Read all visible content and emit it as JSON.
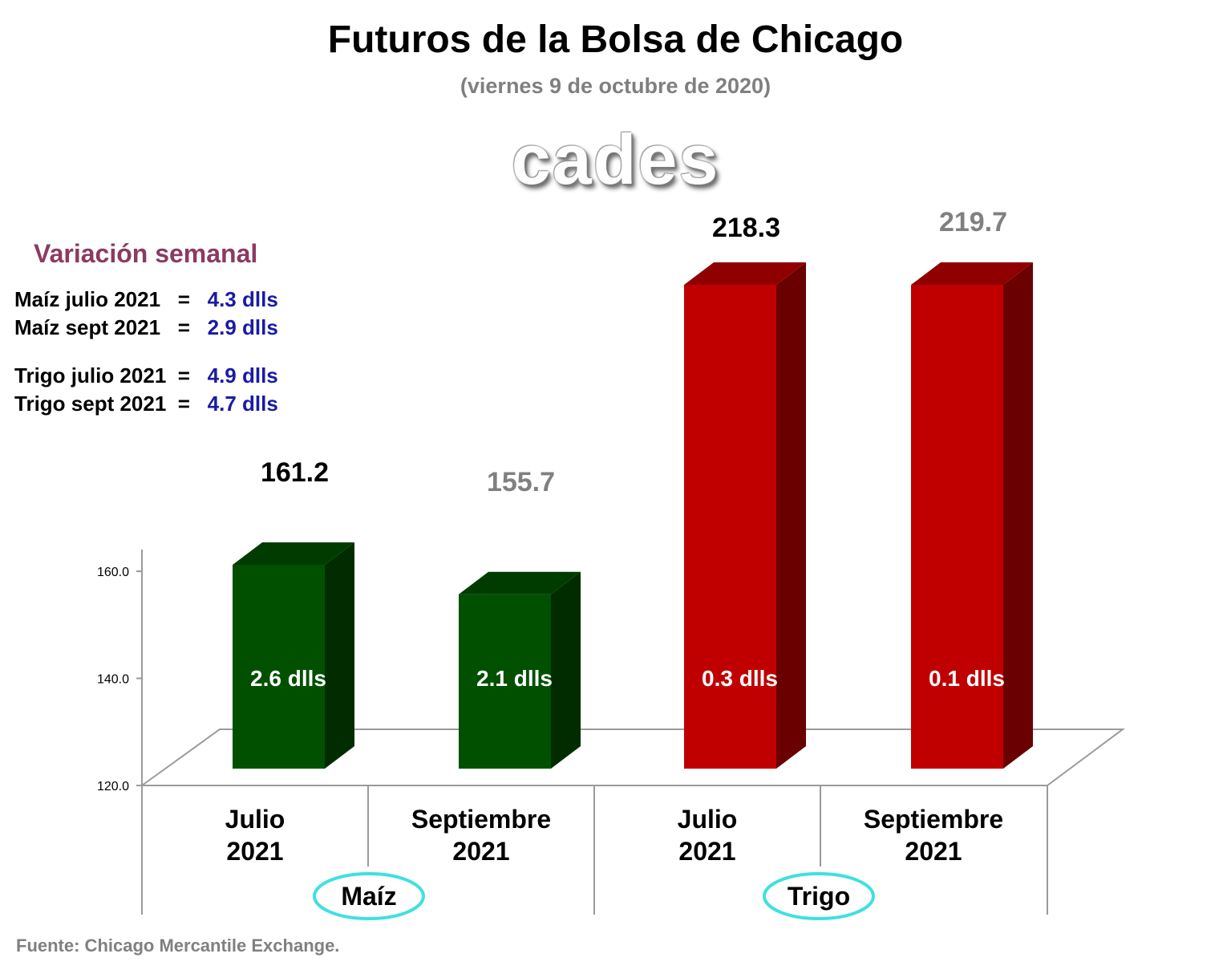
{
  "title": "Futuros de la Bolsa de Chicago",
  "subtitle": "(viernes 9 de octubre de 2020)",
  "logo": "cades",
  "weekly_variation": {
    "title": "Variación semanal",
    "rows": [
      {
        "label": "Maíz julio 2021",
        "value": "4.3 dlls"
      },
      {
        "label": "Maíz sept 2021",
        "value": "2.9 dlls"
      },
      {
        "label": "Trigo julio 2021",
        "value": "4.9 dlls"
      },
      {
        "label": "Trigo sept 2021",
        "value": "4.7 dlls"
      }
    ]
  },
  "source": "Fuente: Chicago Mercantile Exchange.",
  "chart_data": {
    "type": "bar",
    "categories": [
      "Julio 2021",
      "Septiembre 2021",
      "Julio 2021",
      "Septiembre 2021"
    ],
    "groups": [
      "Maíz",
      "Trigo"
    ],
    "values": [
      161.2,
      155.7,
      218.3,
      219.7
    ],
    "value_labels": [
      "161.2",
      "155.7",
      "218.3",
      "219.7"
    ],
    "daily_change_labels": [
      "2.6 dlls",
      "2.1 dlls",
      "0.3 dlls",
      "0.1 dlls"
    ],
    "yticks": [
      "120.0",
      "140.0",
      "160.0"
    ],
    "ylim": [
      120,
      160
    ],
    "bar_colors": [
      "#005000",
      "#005000",
      "#c00000",
      "#c00000"
    ],
    "value_label_colors": [
      "#000000",
      "#808080",
      "#000000",
      "#808080"
    ],
    "group_highlight_color": "#40e0e0"
  }
}
